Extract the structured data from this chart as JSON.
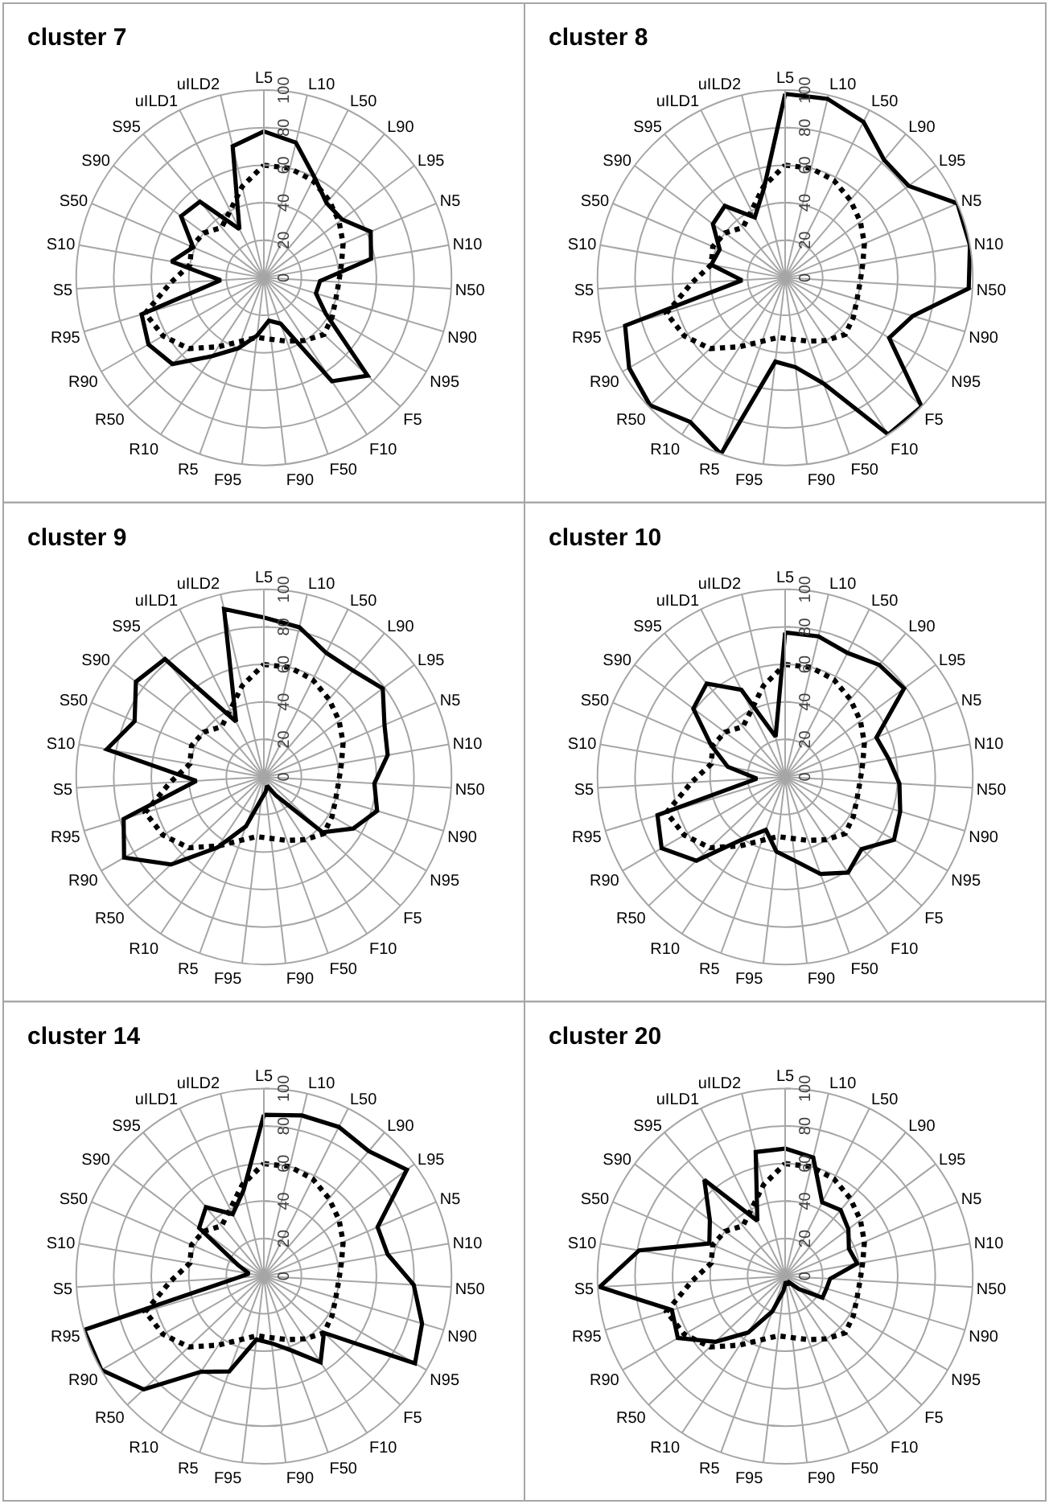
{
  "chart_data": [
    {
      "type": "radar",
      "title": "cluster 7",
      "categories": [
        "L5",
        "L10",
        "L50",
        "L90",
        "L95",
        "N5",
        "N10",
        "N50",
        "N90",
        "N95",
        "F5",
        "F10",
        "F50",
        "F90",
        "F95",
        "R5",
        "R10",
        "R50",
        "R90",
        "R95",
        "S5",
        "S10",
        "S50",
        "S90",
        "S95",
        "uILD1",
        "uILD2"
      ],
      "ylim": [
        0,
        100
      ],
      "yticks": [
        0,
        20,
        40,
        60,
        80,
        100
      ],
      "grid": true,
      "series": [
        {
          "color": "#000000",
          "line_style": "solid",
          "values": [
            78,
            74,
            60,
            52,
            52,
            62,
            58,
            30,
            29,
            38,
            76,
            66,
            26,
            23,
            31,
            40,
            50,
            67,
            71,
            68,
            23,
            50,
            41,
            55,
            53,
            29,
            72
          ]
        },
        {
          "color": "#000000",
          "line_style": "dotted",
          "values": [
            60,
            60,
            58,
            54,
            50,
            46,
            42,
            40,
            40,
            42,
            44,
            40,
            36,
            33,
            32,
            36,
            44,
            55,
            62,
            66,
            50,
            40,
            42,
            40,
            35,
            40,
            50
          ]
        }
      ]
    },
    {
      "type": "radar",
      "title": "cluster 8",
      "categories": [
        "L5",
        "L10",
        "L50",
        "L90",
        "L95",
        "N5",
        "N10",
        "N50",
        "N90",
        "N95",
        "F5",
        "F10",
        "F50",
        "F90",
        "F95",
        "R5",
        "R10",
        "R50",
        "R90",
        "R95",
        "S5",
        "S10",
        "S50",
        "S90",
        "S95",
        "uILD1",
        "uILD2"
      ],
      "ylim": [
        0,
        100
      ],
      "yticks": [
        0,
        20,
        40,
        60,
        80,
        100
      ],
      "grid": true,
      "series": [
        {
          "color": "#000000",
          "line_style": "solid",
          "values": [
            98,
            98,
            93,
            82,
            82,
            100,
            100,
            98,
            71,
            64,
            100,
            100,
            60,
            48,
            45,
            100,
            92,
            99,
            96,
            89,
            23,
            40,
            38,
            48,
            50,
            36,
            49
          ]
        },
        {
          "color": "#000000",
          "line_style": "dotted",
          "values": [
            60,
            60,
            58,
            54,
            50,
            46,
            42,
            40,
            40,
            42,
            44,
            40,
            36,
            33,
            32,
            36,
            44,
            55,
            62,
            66,
            50,
            40,
            42,
            40,
            35,
            40,
            50
          ]
        }
      ]
    },
    {
      "type": "radar",
      "title": "cluster 9",
      "categories": [
        "L5",
        "L10",
        "L50",
        "L90",
        "L95",
        "N5",
        "N10",
        "N50",
        "N90",
        "N95",
        "F5",
        "F10",
        "F50",
        "F90",
        "F95",
        "R5",
        "R10",
        "R50",
        "R90",
        "R95",
        "S5",
        "S10",
        "S50",
        "S90",
        "S95",
        "uILD1",
        "uILD2"
      ],
      "ylim": [
        0,
        100
      ],
      "yticks": [
        0,
        20,
        40,
        60,
        80,
        100
      ],
      "grid": true,
      "series": [
        {
          "color": "#000000",
          "line_style": "solid",
          "values": [
            85,
            82,
            74,
            74,
            79,
            70,
            67,
            59,
            63,
            55,
            43,
            12,
            5,
            8,
            12,
            28,
            45,
            68,
            86,
            78,
            36,
            85,
            75,
            85,
            82,
            33,
            92
          ]
        },
        {
          "color": "#000000",
          "line_style": "dotted",
          "values": [
            60,
            60,
            58,
            54,
            50,
            46,
            42,
            40,
            40,
            42,
            44,
            40,
            36,
            33,
            32,
            36,
            44,
            55,
            62,
            66,
            50,
            40,
            42,
            40,
            35,
            40,
            50
          ]
        }
      ]
    },
    {
      "type": "radar",
      "title": "cluster 10",
      "categories": [
        "L5",
        "L10",
        "L50",
        "L90",
        "L95",
        "N5",
        "N10",
        "N50",
        "N90",
        "N95",
        "F5",
        "F10",
        "F50",
        "F90",
        "F95",
        "R5",
        "R10",
        "R50",
        "R90",
        "R95",
        "S5",
        "S10",
        "S50",
        "S90",
        "S95",
        "uILD1",
        "uILD2"
      ],
      "ylim": [
        0,
        100
      ],
      "yticks": [
        0,
        20,
        40,
        60,
        80,
        100
      ],
      "grid": true,
      "series": [
        {
          "color": "#000000",
          "line_style": "solid",
          "values": [
            77,
            77,
            74,
            78,
            79,
            53,
            56,
            61,
            64,
            67,
            56,
            61,
            55,
            45,
            40,
            30,
            39,
            65,
            76,
            71,
            15,
            31,
            43,
            61,
            65,
            52,
            22
          ]
        },
        {
          "color": "#000000",
          "line_style": "dotted",
          "values": [
            60,
            60,
            58,
            54,
            50,
            46,
            42,
            40,
            40,
            42,
            44,
            40,
            36,
            33,
            32,
            36,
            44,
            55,
            62,
            66,
            50,
            40,
            42,
            40,
            35,
            40,
            50
          ]
        }
      ]
    },
    {
      "type": "radar",
      "title": "cluster 14",
      "categories": [
        "L5",
        "L10",
        "L50",
        "L90",
        "L95",
        "N5",
        "N10",
        "N50",
        "N90",
        "N95",
        "F5",
        "F10",
        "F50",
        "F90",
        "F95",
        "R5",
        "R10",
        "R50",
        "R90",
        "R95",
        "S5",
        "S10",
        "S50",
        "S90",
        "S95",
        "uILD1",
        "uILD2"
      ],
      "ylim": [
        0,
        100
      ],
      "yticks": [
        0,
        20,
        40,
        60,
        80,
        100
      ],
      "grid": true,
      "series": [
        {
          "color": "#000000",
          "line_style": "solid",
          "values": [
            86,
            88,
            89,
            87,
            95,
            66,
            67,
            80,
            88,
            93,
            44,
            55,
            42,
            36,
            34,
            54,
            61,
            88,
            100,
            100,
            14,
            8,
            15,
            43,
            48,
            37,
            47
          ]
        },
        {
          "color": "#000000",
          "line_style": "dotted",
          "values": [
            60,
            60,
            58,
            54,
            50,
            46,
            42,
            40,
            40,
            42,
            44,
            40,
            36,
            33,
            32,
            36,
            44,
            55,
            62,
            66,
            50,
            40,
            42,
            40,
            35,
            40,
            50
          ]
        }
      ]
    },
    {
      "type": "radar",
      "title": "cluster 20",
      "categories": [
        "L5",
        "L10",
        "L50",
        "L90",
        "L95",
        "N5",
        "N10",
        "N50",
        "N90",
        "N95",
        "F5",
        "F10",
        "F50",
        "F90",
        "F95",
        "R5",
        "R10",
        "R50",
        "R90",
        "R95",
        "S5",
        "S10",
        "S50",
        "S90",
        "S95",
        "uILD1",
        "uILD2"
      ],
      "ylim": [
        0,
        100
      ],
      "yticks": [
        0,
        20,
        40,
        60,
        80,
        100
      ],
      "grid": true,
      "series": [
        {
          "color": "#000000",
          "line_style": "solid",
          "values": [
            68,
            65,
            44,
            46,
            42,
            37,
            39,
            24,
            23,
            23,
            10,
            4,
            5,
            3,
            8,
            20,
            36,
            51,
            66,
            63,
            99,
            79,
            44,
            50,
            67,
            33,
            68
          ]
        },
        {
          "color": "#000000",
          "line_style": "dotted",
          "values": [
            60,
            60,
            58,
            54,
            50,
            46,
            42,
            40,
            40,
            42,
            44,
            40,
            36,
            33,
            32,
            36,
            44,
            55,
            62,
            66,
            50,
            40,
            42,
            40,
            35,
            40,
            50
          ]
        }
      ]
    }
  ]
}
